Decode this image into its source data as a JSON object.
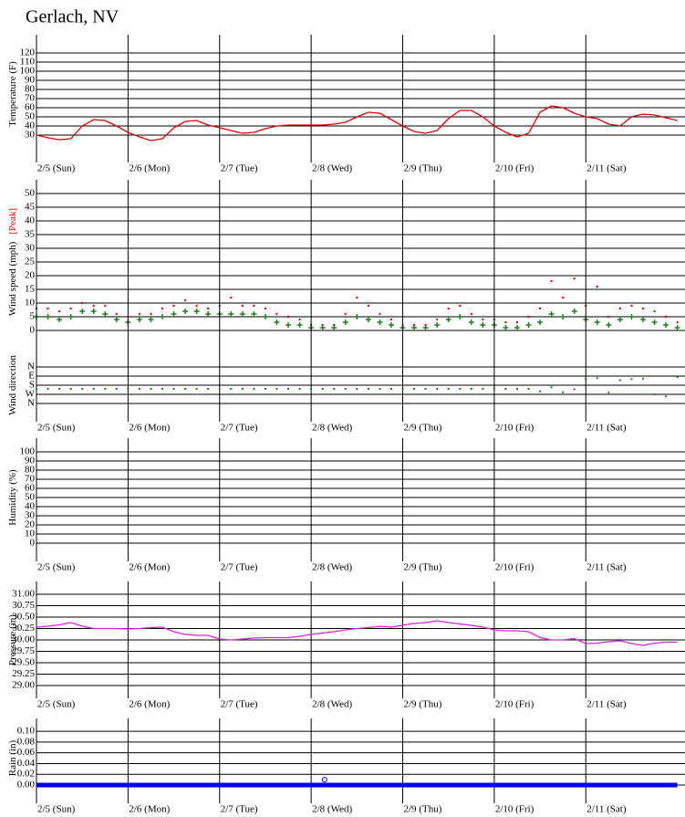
{
  "chart_data": [
    {
      "type": "line",
      "title": "Gerlach, NV",
      "ylabel": "Temperature (F)",
      "x": [
        0,
        3,
        6,
        9,
        12,
        15,
        18,
        21,
        24,
        27,
        30,
        33,
        36,
        39,
        42,
        45,
        48,
        51,
        54,
        57,
        60,
        63,
        66,
        69,
        72,
        75,
        78,
        81,
        84,
        87,
        90,
        93,
        96,
        99,
        102,
        105,
        108,
        111,
        114,
        117,
        120,
        123,
        126,
        129,
        132,
        135,
        138,
        141,
        144,
        147,
        150,
        153,
        156,
        159,
        162,
        165,
        168
      ],
      "xlim": [
        0,
        170
      ],
      "xticks": [
        {
          "value": 0,
          "label": "2/5 (Sun)"
        },
        {
          "value": 24,
          "label": "2/6 (Mon)"
        },
        {
          "value": 48,
          "label": "2/7 (Tue)"
        },
        {
          "value": 72,
          "label": "2/8 (Wed)"
        },
        {
          "value": 96,
          "label": "2/9 (Thu)"
        },
        {
          "value": 120,
          "label": "2/10 (Fri)"
        },
        {
          "value": 144,
          "label": "2/11 (Sat)"
        }
      ],
      "ylim": [
        0,
        140
      ],
      "yticks": [
        30,
        40,
        50,
        60,
        70,
        80,
        90,
        100,
        110,
        120
      ],
      "grid": true,
      "series": [
        {
          "name": "Temperature",
          "color": "#e00000",
          "values": [
            30,
            27,
            25,
            26,
            40,
            47,
            46,
            40,
            33,
            28,
            24,
            26,
            38,
            45,
            46,
            41,
            38,
            35,
            32,
            33,
            37,
            40,
            41,
            41,
            41,
            41,
            42,
            44,
            50,
            55,
            54,
            47,
            40,
            34,
            32,
            35,
            48,
            57,
            57,
            50,
            40,
            33,
            28,
            32,
            55,
            62,
            60,
            54,
            50,
            48,
            42,
            40,
            50,
            53,
            52,
            49,
            46
          ]
        }
      ]
    },
    {
      "type": "scatter",
      "ylabel": "Wind speed (mph)",
      "x": [
        0,
        3,
        6,
        9,
        12,
        15,
        18,
        21,
        24,
        27,
        30,
        33,
        36,
        39,
        42,
        45,
        48,
        51,
        54,
        57,
        60,
        63,
        66,
        69,
        72,
        75,
        78,
        81,
        84,
        87,
        90,
        93,
        96,
        99,
        102,
        105,
        108,
        111,
        114,
        117,
        120,
        123,
        126,
        129,
        132,
        135,
        138,
        141,
        144,
        147,
        150,
        153,
        156,
        159,
        162,
        165,
        168
      ],
      "xlim": [
        0,
        170
      ],
      "ylim": [
        0,
        55
      ],
      "yticks": [
        0,
        5,
        10,
        15,
        20,
        25,
        30,
        35,
        40,
        45,
        50
      ],
      "grid": true,
      "series": [
        {
          "color": "#1f7f1f",
          "marker": "plus",
          "values": [
            5,
            5,
            4,
            5,
            7,
            7,
            6,
            4,
            3,
            4,
            4,
            5,
            6,
            7,
            7,
            6,
            6,
            6,
            6,
            6,
            5,
            3,
            2,
            2,
            1,
            1,
            1,
            3,
            5,
            4,
            3,
            2,
            1,
            1,
            1,
            2,
            4,
            5,
            3,
            2,
            2,
            1,
            1,
            2,
            3,
            6,
            5,
            7,
            4,
            3,
            2,
            4,
            5,
            4,
            3,
            2,
            1
          ]
        },
        {
          "name": "[Peak]",
          "color": "#e00000",
          "marker": "dot",
          "values": [
            8,
            8,
            7,
            8,
            10,
            9,
            9,
            6,
            5,
            6,
            6,
            8,
            9,
            11,
            9,
            8,
            9,
            12,
            9,
            9,
            8,
            6,
            5,
            4,
            2,
            2,
            2,
            6,
            12,
            9,
            6,
            4,
            2,
            2,
            2,
            4,
            8,
            9,
            6,
            4,
            4,
            3,
            3,
            5,
            8,
            18,
            12,
            19,
            9,
            16,
            5,
            8,
            9,
            8,
            7,
            5,
            3
          ]
        }
      ]
    },
    {
      "type": "scatter",
      "ylabel": "Wind direction",
      "x": [
        0,
        3,
        6,
        9,
        12,
        15,
        18,
        21,
        24,
        27,
        30,
        33,
        36,
        39,
        42,
        45,
        48,
        51,
        54,
        57,
        60,
        63,
        66,
        69,
        72,
        75,
        78,
        81,
        84,
        87,
        90,
        93,
        96,
        99,
        102,
        105,
        108,
        111,
        114,
        117,
        120,
        123,
        126,
        129,
        132,
        135,
        138,
        141,
        144,
        147,
        150,
        153,
        156,
        159,
        162,
        165,
        168
      ],
      "xlim": [
        0,
        170
      ],
      "xticks": [
        {
          "value": 0,
          "label": "2/5 (Sun)"
        },
        {
          "value": 24,
          "label": "2/6 (Mon)"
        },
        {
          "value": 48,
          "label": "2/7 (Tue)"
        },
        {
          "value": 72,
          "label": "2/8 (Wed)"
        },
        {
          "value": 96,
          "label": "2/9 (Thu)"
        },
        {
          "value": 120,
          "label": "2/10 (Fri)"
        },
        {
          "value": 144,
          "label": "2/11 (Sat)"
        }
      ],
      "ylim": [
        -360,
        540
      ],
      "y_reversed": true,
      "yticks": [
        {
          "value": 0,
          "label": "N"
        },
        {
          "value": 90,
          "label": "E"
        },
        {
          "value": 180,
          "label": "S"
        },
        {
          "value": 270,
          "label": "W"
        },
        {
          "value": 360,
          "label": "N"
        }
      ],
      "grid": true,
      "series": [
        {
          "color": "#1f7f1f",
          "marker": "dot",
          "values": [
            216,
            216,
            216,
            216,
            216,
            216,
            216,
            216,
            216,
            216,
            216,
            216,
            216,
            216,
            216,
            216,
            216,
            216,
            216,
            216,
            216,
            216,
            216,
            216,
            216,
            216,
            216,
            216,
            216,
            216,
            216,
            216,
            216,
            216,
            216,
            216,
            216,
            216,
            216,
            216,
            216,
            216,
            216,
            216,
            240,
            200,
            250,
            220,
            120,
            110,
            250,
            130,
            120,
            115,
            270,
            290,
            100
          ]
        }
      ]
    },
    {
      "type": "line",
      "ylabel": "Humidity (%)",
      "xlim": [
        0,
        170
      ],
      "xticks": [
        {
          "value": 0,
          "label": "2/5 (Sun)"
        },
        {
          "value": 24,
          "label": "2/6 (Mon)"
        },
        {
          "value": 48,
          "label": "2/7 (Tue)"
        },
        {
          "value": 72,
          "label": "2/8 (Wed)"
        },
        {
          "value": 96,
          "label": "2/9 (Thu)"
        },
        {
          "value": 120,
          "label": "2/10 (Fri)"
        },
        {
          "value": 144,
          "label": "2/11 (Sat)"
        }
      ],
      "ylim": [
        -20,
        115
      ],
      "yticks": [
        0,
        10,
        20,
        30,
        40,
        50,
        60,
        70,
        80,
        90,
        100
      ],
      "grid": true
    },
    {
      "type": "line",
      "ylabel": "Pressure (in)",
      "x": [
        0,
        3,
        6,
        9,
        12,
        15,
        18,
        21,
        24,
        27,
        30,
        33,
        36,
        39,
        42,
        45,
        48,
        51,
        54,
        57,
        60,
        63,
        66,
        69,
        72,
        75,
        78,
        81,
        84,
        87,
        90,
        93,
        96,
        99,
        102,
        105,
        108,
        111,
        114,
        117,
        120,
        123,
        126,
        129,
        132,
        135,
        138,
        141,
        144,
        147,
        150,
        153,
        156,
        159,
        162,
        165,
        168
      ],
      "xlim": [
        0,
        170
      ],
      "xticks": [
        {
          "value": 0,
          "label": "2/5 (Sun)"
        },
        {
          "value": 24,
          "label": "2/6 (Mon)"
        },
        {
          "value": 48,
          "label": "2/7 (Tue)"
        },
        {
          "value": 72,
          "label": "2/8 (Wed)"
        },
        {
          "value": 96,
          "label": "2/9 (Thu)"
        },
        {
          "value": 120,
          "label": "2/10 (Fri)"
        },
        {
          "value": 144,
          "label": "2/11 (Sat)"
        }
      ],
      "ylim": [
        28.72,
        31.28
      ],
      "yticks": [
        {
          "value": 29,
          "label": "29.00"
        },
        {
          "value": 29.25,
          "label": "29.25"
        },
        {
          "value": 29.5,
          "label": "29.50"
        },
        {
          "value": 29.75,
          "label": "29.75"
        },
        {
          "value": 30,
          "label": "30.00"
        },
        {
          "value": 30.25,
          "label": "30.25"
        },
        {
          "value": 30.5,
          "label": "30.50"
        },
        {
          "value": 30.75,
          "label": "30.75"
        },
        {
          "value": 31,
          "label": "31.00"
        }
      ],
      "grid": true,
      "series": [
        {
          "name": "Pressure",
          "color": "#e020e0",
          "values": [
            30.28,
            30.3,
            30.33,
            30.38,
            30.3,
            30.25,
            30.25,
            30.25,
            30.24,
            30.25,
            30.27,
            30.28,
            30.18,
            30.12,
            30.1,
            30.1,
            30.02,
            30.0,
            30.02,
            30.04,
            30.05,
            30.05,
            30.05,
            30.08,
            30.12,
            30.15,
            30.18,
            30.22,
            30.25,
            30.27,
            30.3,
            30.28,
            30.32,
            30.36,
            30.38,
            30.42,
            30.38,
            30.35,
            30.32,
            30.28,
            30.22,
            30.2,
            30.2,
            30.18,
            30.05,
            30.0,
            30.0,
            30.03,
            29.92,
            29.93,
            29.96,
            29.98,
            29.92,
            29.88,
            29.93,
            29.95,
            29.95
          ]
        }
      ]
    },
    {
      "type": "line",
      "ylabel": "Rain (in)",
      "x": [
        0,
        3,
        6,
        9,
        12,
        15,
        18,
        21,
        24,
        27,
        30,
        33,
        36,
        39,
        42,
        45,
        48,
        51,
        54,
        57,
        60,
        63,
        66,
        69,
        72,
        75,
        78,
        81,
        84,
        87,
        90,
        93,
        96,
        99,
        102,
        105,
        108,
        111,
        114,
        117,
        120,
        123,
        126,
        129,
        132,
        135,
        138,
        141,
        144,
        147,
        150,
        153,
        156,
        159,
        162,
        165,
        168
      ],
      "xlim": [
        0,
        170
      ],
      "xticks": [
        {
          "value": 0,
          "label": "2/5 (Sun)"
        },
        {
          "value": 24,
          "label": "2/6 (Mon)"
        },
        {
          "value": 48,
          "label": "2/7 (Tue)"
        },
        {
          "value": 72,
          "label": "2/8 (Wed)"
        },
        {
          "value": 96,
          "label": "2/9 (Thu)"
        },
        {
          "value": 120,
          "label": "2/10 (Fri)"
        },
        {
          "value": 144,
          "label": "2/11 (Sat)"
        }
      ],
      "ylim": [
        -0.034,
        0.124
      ],
      "yticks": [
        {
          "value": 0,
          "label": "0.00"
        },
        {
          "value": 0.02,
          "label": "0.02"
        },
        {
          "value": 0.04,
          "label": "0.04"
        },
        {
          "value": 0.06,
          "label": "0.06"
        },
        {
          "value": 0.08,
          "label": "0.08"
        },
        {
          "value": 0.1,
          "label": "0.10"
        }
      ],
      "grid": true,
      "series": [
        {
          "color": "#0000ee",
          "line_width": 5,
          "values": [
            0,
            0,
            0,
            0,
            0,
            0,
            0,
            0,
            0,
            0,
            0,
            0,
            0,
            0,
            0,
            0,
            0,
            0,
            0,
            0,
            0,
            0,
            0,
            0,
            0,
            0,
            0,
            0,
            0,
            0,
            0,
            0,
            0,
            0,
            0,
            0,
            0,
            0,
            0,
            0,
            0,
            0,
            0,
            0,
            0,
            0,
            0,
            0,
            0,
            0,
            0,
            0,
            0,
            0,
            0,
            0,
            0
          ]
        },
        {
          "color": "#0000ee",
          "marker": "circle",
          "x": [
            75.5
          ],
          "values": [
            0.01
          ]
        }
      ]
    }
  ]
}
